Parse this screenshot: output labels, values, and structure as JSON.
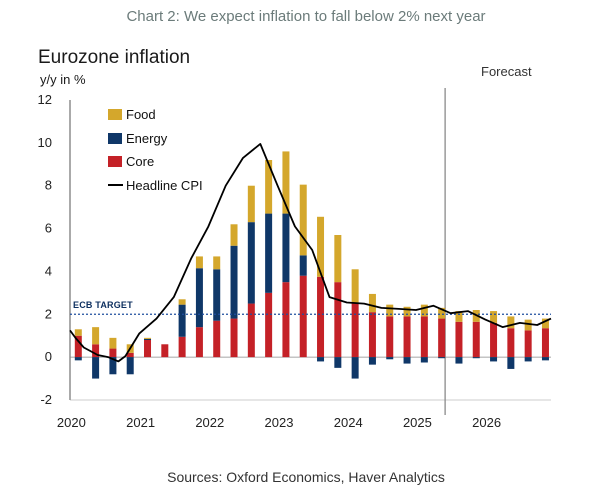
{
  "caption": "Chart 2: We expect inflation to fall below 2% next year",
  "source": "Sources: Oxford Economics, Haver Analytics",
  "colors": {
    "food": "#d4a72c",
    "energy": "#0f3768",
    "core": "#c42127",
    "headline": "#000000",
    "target": "#1f4e9e",
    "caption": "#6b7b7a"
  },
  "chart_data": {
    "type": "bar",
    "stacked": true,
    "title": "Eurozone inflation",
    "ylabel": "y/y in %",
    "ylim": [
      -2,
      12
    ],
    "yticks": [
      -2,
      0,
      2,
      4,
      6,
      8,
      10,
      12
    ],
    "xlim": [
      2020.0,
      2026.95
    ],
    "xticks": [
      2020,
      2021,
      2022,
      2023,
      2024,
      2025,
      2026
    ],
    "forecast_label": "Forecast",
    "forecast_start": 2025.42,
    "target_label": "ECB TARGET",
    "target_value": 2.0,
    "legend": [
      "Food",
      "Energy",
      "Core",
      "Headline CPI"
    ],
    "quarters": [
      "2020Q1",
      "2020Q2",
      "2020Q3",
      "2020Q4",
      "2021Q1",
      "2021Q2",
      "2021Q3",
      "2021Q4",
      "2022Q1",
      "2022Q2",
      "2022Q3",
      "2022Q4",
      "2023Q1",
      "2023Q2",
      "2023Q3",
      "2023Q4",
      "2024Q1",
      "2024Q2",
      "2024Q3",
      "2024Q4",
      "2025Q1",
      "2025Q2",
      "2025Q3",
      "2025Q4",
      "2026Q1",
      "2026Q2",
      "2026Q3",
      "2026Q4"
    ],
    "series": [
      {
        "name": "Core",
        "values": [
          1.0,
          0.6,
          0.4,
          0.2,
          0.8,
          0.6,
          0.95,
          1.4,
          1.7,
          1.8,
          2.5,
          3.0,
          3.5,
          3.8,
          3.75,
          3.5,
          2.55,
          2.1,
          1.9,
          1.9,
          1.9,
          1.8,
          1.65,
          1.65,
          1.6,
          1.35,
          1.25,
          1.35
        ]
      },
      {
        "name": "Energy",
        "values": [
          -0.15,
          -1.0,
          -0.8,
          -0.8,
          0.05,
          0.0,
          1.5,
          2.75,
          2.4,
          3.4,
          3.8,
          3.7,
          3.2,
          0.95,
          -0.2,
          -0.5,
          -1.0,
          -0.35,
          -0.1,
          -0.3,
          -0.25,
          -0.05,
          -0.3,
          -0.05,
          -0.2,
          -0.55,
          -0.2,
          -0.15
        ]
      },
      {
        "name": "Food",
        "values": [
          0.3,
          0.8,
          0.5,
          0.4,
          0.05,
          0.0,
          0.25,
          0.55,
          0.6,
          1.0,
          1.7,
          2.5,
          2.9,
          3.3,
          2.8,
          2.2,
          1.55,
          0.85,
          0.55,
          0.45,
          0.55,
          0.5,
          0.5,
          0.55,
          0.55,
          0.55,
          0.5,
          0.45
        ]
      }
    ],
    "headline": {
      "name": "Headline CPI",
      "x": [
        2020.0,
        2020.08,
        2020.2,
        2020.4,
        2020.55,
        2020.7,
        2020.8,
        2021.0,
        2021.25,
        2021.5,
        2021.75,
        2022.0,
        2022.25,
        2022.5,
        2022.75,
        2023.0,
        2023.25,
        2023.5,
        2023.75,
        2024.0,
        2024.25,
        2024.5,
        2024.75,
        2025.0,
        2025.25,
        2025.5,
        2025.75,
        2026.0,
        2026.25,
        2026.5,
        2026.75,
        2026.95
      ],
      "y": [
        1.25,
        0.9,
        0.45,
        0.1,
        0.0,
        -0.2,
        0.05,
        1.1,
        1.8,
        2.8,
        4.6,
        6.1,
        8.0,
        9.3,
        9.95,
        8.0,
        6.1,
        5.0,
        2.8,
        2.55,
        2.5,
        2.3,
        2.25,
        2.2,
        2.4,
        2.05,
        2.15,
        1.75,
        1.4,
        1.6,
        1.5,
        1.8
      ]
    }
  }
}
